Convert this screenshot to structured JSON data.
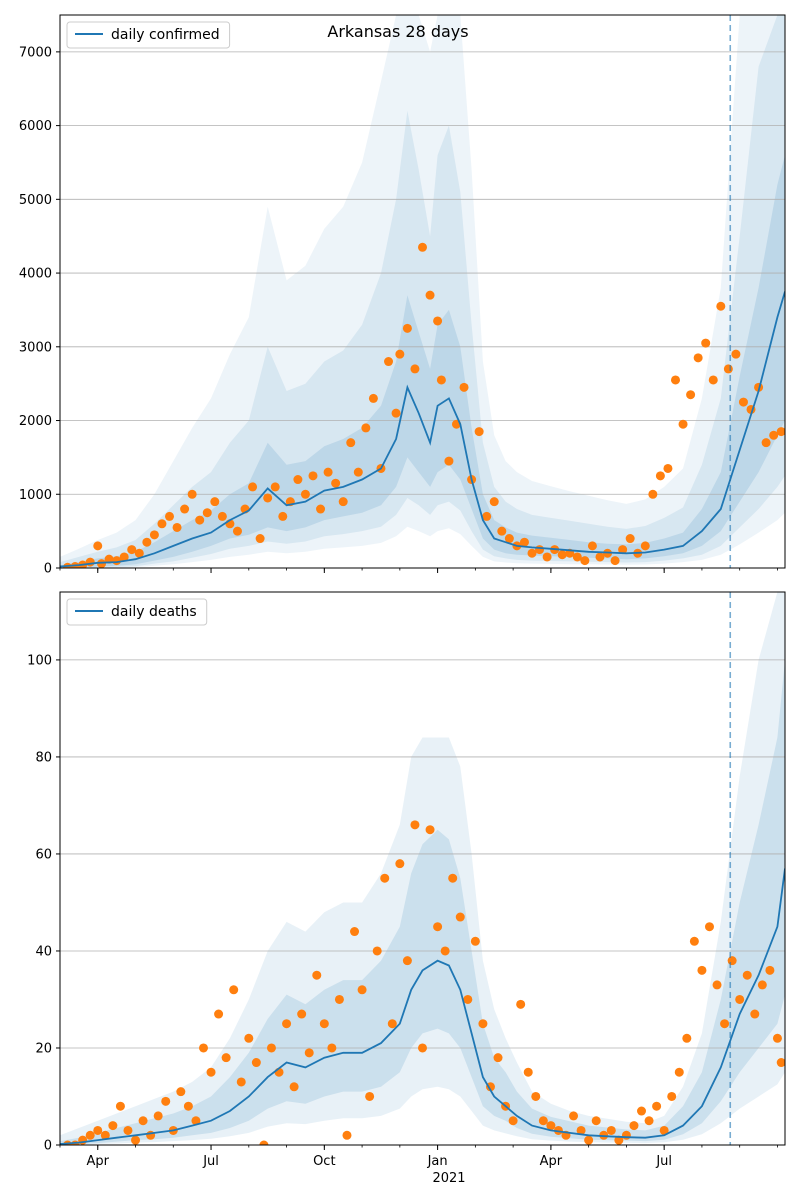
{
  "title": "Arkansas 28 days",
  "colors": {
    "line": "#1f77b4",
    "points": "#ff7f0e",
    "band": "#1f77b4",
    "grid": "#b0b0b0",
    "vline": "#1f77b4"
  },
  "x_axis": {
    "month_ticks": [
      {
        "label": "Apr",
        "x": 1
      },
      {
        "label": "Jul",
        "x": 4
      },
      {
        "label": "Oct",
        "x": 7
      },
      {
        "label": "Jan",
        "x": 10
      },
      {
        "label": "Apr",
        "x": 13
      },
      {
        "label": "Jul",
        "x": 16
      }
    ],
    "year_label": "2021"
  },
  "chart_data": [
    {
      "type": "line",
      "legend": "daily confirmed",
      "legend_position": "top-left",
      "xlim": [
        0,
        19.2
      ],
      "ylim": [
        0,
        7500
      ],
      "yticks": [
        0,
        1000,
        2000,
        3000,
        4000,
        5000,
        6000,
        7000
      ],
      "grid": true,
      "forecast_start_x": 17.75,
      "line": {
        "x": [
          0,
          0.5,
          1,
          1.5,
          2,
          2.5,
          3,
          3.5,
          4,
          4.5,
          5,
          5.5,
          6,
          6.5,
          7,
          7.5,
          8,
          8.5,
          8.9,
          9.2,
          9.5,
          9.8,
          10,
          10.3,
          10.6,
          10.9,
          11.2,
          11.5,
          11.8,
          12.1,
          12.5,
          13,
          13.5,
          14,
          14.5,
          15,
          15.5,
          16,
          16.5,
          17,
          17.5,
          18,
          18.5,
          19,
          19.2
        ],
        "y": [
          20,
          40,
          70,
          80,
          120,
          200,
          300,
          400,
          480,
          650,
          780,
          1080,
          850,
          900,
          1050,
          1100,
          1200,
          1350,
          1750,
          2450,
          2100,
          1700,
          2200,
          2300,
          1950,
          1200,
          650,
          400,
          350,
          300,
          280,
          260,
          240,
          220,
          210,
          200,
          210,
          250,
          300,
          500,
          800,
          1600,
          2400,
          3400,
          3750
        ]
      },
      "bands": [
        {
          "lower": [
            5,
            10,
            20,
            30,
            50,
            100,
            150,
            220,
            300,
            400,
            450,
            550,
            500,
            550,
            650,
            700,
            750,
            850,
            1100,
            1500,
            1300,
            1100,
            1300,
            1400,
            1200,
            800,
            400,
            250,
            200,
            180,
            170,
            160,
            150,
            140,
            130,
            120,
            130,
            160,
            200,
            300,
            500,
            900,
            1300,
            1800,
            2000
          ],
          "upper": [
            40,
            80,
            130,
            160,
            220,
            350,
            500,
            650,
            780,
            1000,
            1150,
            1700,
            1400,
            1450,
            1650,
            1750,
            1900,
            2200,
            2800,
            3700,
            3200,
            2700,
            3300,
            3500,
            3000,
            1900,
            1000,
            650,
            550,
            480,
            440,
            410,
            380,
            350,
            330,
            320,
            340,
            400,
            480,
            800,
            1300,
            2600,
            3800,
            5200,
            5600
          ]
        },
        {
          "lower": [
            2,
            5,
            10,
            15,
            25,
            60,
            90,
            140,
            190,
            260,
            300,
            360,
            330,
            360,
            430,
            460,
            500,
            560,
            720,
            950,
            850,
            720,
            850,
            900,
            780,
            500,
            250,
            160,
            130,
            110,
            100,
            95,
            90,
            85,
            80,
            75,
            80,
            100,
            130,
            180,
            300,
            550,
            800,
            1100,
            1250
          ],
          "upper": [
            80,
            150,
            220,
            280,
            380,
            600,
            850,
            1100,
            1300,
            1700,
            2000,
            3000,
            2400,
            2500,
            2800,
            2950,
            3300,
            4000,
            5000,
            6200,
            5400,
            4500,
            5600,
            6000,
            5100,
            3300,
            1700,
            1100,
            900,
            800,
            720,
            680,
            640,
            600,
            560,
            530,
            570,
            680,
            820,
            1400,
            2300,
            4500,
            6800,
            7500,
            7500
          ]
        },
        {
          "lower": [
            0,
            2,
            5,
            8,
            12,
            30,
            50,
            80,
            110,
            150,
            180,
            220,
            200,
            220,
            260,
            280,
            300,
            340,
            430,
            560,
            500,
            430,
            500,
            540,
            460,
            300,
            150,
            90,
            75,
            65,
            60,
            55,
            52,
            50,
            48,
            45,
            48,
            60,
            80,
            110,
            180,
            320,
            480,
            650,
            750
          ],
          "upper": [
            150,
            260,
            380,
            480,
            650,
            1000,
            1450,
            1900,
            2300,
            2900,
            3400,
            4900,
            3900,
            4100,
            4600,
            4900,
            5500,
            6600,
            7500,
            7500,
            7500,
            7000,
            7500,
            7500,
            7500,
            5400,
            2800,
            1800,
            1450,
            1300,
            1180,
            1110,
            1040,
            980,
            920,
            870,
            930,
            1100,
            1350,
            2300,
            3800,
            7500,
            7500,
            7500,
            7500
          ]
        }
      ],
      "points": {
        "x": [
          0.2,
          0.4,
          0.6,
          0.8,
          1.0,
          1.1,
          1.3,
          1.5,
          1.7,
          1.9,
          2.1,
          2.3,
          2.5,
          2.7,
          2.9,
          3.1,
          3.3,
          3.5,
          3.7,
          3.9,
          4.1,
          4.3,
          4.5,
          4.7,
          4.9,
          5.1,
          5.3,
          5.5,
          5.7,
          5.9,
          6.1,
          6.3,
          6.5,
          6.7,
          6.9,
          7.1,
          7.3,
          7.5,
          7.7,
          7.9,
          8.1,
          8.3,
          8.5,
          8.7,
          8.9,
          9.0,
          9.2,
          9.4,
          9.6,
          9.8,
          10.0,
          10.1,
          10.3,
          10.5,
          10.7,
          10.9,
          11.1,
          11.3,
          11.5,
          11.7,
          11.9,
          12.1,
          12.3,
          12.5,
          12.7,
          12.9,
          13.1,
          13.3,
          13.5,
          13.7,
          13.9,
          14.1,
          14.3,
          14.5,
          14.7,
          14.9,
          15.1,
          15.3,
          15.5,
          15.7,
          15.9,
          16.1,
          16.3,
          16.5,
          16.7,
          16.9,
          17.1,
          17.3,
          17.5,
          17.7,
          17.9,
          18.1,
          18.3,
          18.5,
          18.7,
          18.9,
          19.1
        ],
        "y": [
          10,
          20,
          40,
          80,
          300,
          60,
          120,
          100,
          150,
          250,
          200,
          350,
          450,
          600,
          700,
          550,
          800,
          1000,
          650,
          750,
          900,
          700,
          600,
          500,
          800,
          1100,
          400,
          950,
          1100,
          700,
          900,
          1200,
          1000,
          1250,
          800,
          1300,
          1150,
          900,
          1700,
          1300,
          1900,
          2300,
          1350,
          2800,
          2100,
          2900,
          3250,
          2700,
          4350,
          3700,
          3350,
          2550,
          1450,
          1950,
          2450,
          1200,
          1850,
          700,
          900,
          500,
          400,
          300,
          350,
          200,
          250,
          150,
          250,
          180,
          200,
          150,
          100,
          300,
          150,
          200,
          100,
          250,
          400,
          200,
          300,
          1000,
          1250,
          1350,
          2550,
          1950,
          2350,
          2850,
          3050,
          2550,
          3550,
          2700,
          2900,
          2250,
          2150,
          2450,
          1700,
          1800,
          1850
        ]
      }
    },
    {
      "type": "line",
      "legend": "daily deaths",
      "legend_position": "top-left",
      "xlim": [
        0,
        19.2
      ],
      "ylim": [
        0,
        114
      ],
      "yticks": [
        0,
        20,
        40,
        60,
        80,
        100
      ],
      "grid": true,
      "forecast_start_x": 17.75,
      "line": {
        "x": [
          0,
          0.5,
          1,
          1.5,
          2,
          2.5,
          3,
          3.5,
          4,
          4.5,
          5,
          5.5,
          6,
          6.5,
          7,
          7.5,
          8,
          8.5,
          9,
          9.3,
          9.6,
          10,
          10.3,
          10.6,
          10.9,
          11.2,
          11.5,
          11.8,
          12.1,
          12.5,
          13,
          13.5,
          14,
          14.5,
          15,
          15.5,
          16,
          16.5,
          17,
          17.5,
          18,
          18.5,
          19,
          19.2
        ],
        "y": [
          0.2,
          0.5,
          1,
          1.5,
          2,
          2.5,
          3,
          4,
          5,
          7,
          10,
          14,
          17,
          16,
          18,
          19,
          19,
          21,
          25,
          32,
          36,
          38,
          37,
          32,
          23,
          14,
          10,
          8,
          6,
          4,
          3,
          2.5,
          2,
          1.8,
          1.6,
          1.5,
          2,
          4,
          8,
          16,
          27,
          35,
          45,
          57
        ]
      },
      "bands": [
        {
          "lower": [
            0,
            0.2,
            0.4,
            0.7,
            1,
            1.2,
            1.5,
            2,
            2.5,
            3.5,
            5,
            7.5,
            9,
            8.5,
            10,
            11,
            11,
            12,
            15,
            20,
            23,
            24,
            23,
            20,
            14,
            8,
            6,
            5,
            3.5,
            2.3,
            1.7,
            1.4,
            1.1,
            1,
            0.9,
            0.8,
            1.1,
            2.2,
            4.5,
            9,
            15,
            20,
            25,
            31
          ],
          "upper": [
            0.8,
            1.5,
            2.5,
            3.5,
            4.5,
            5.5,
            6.5,
            8,
            10,
            14,
            19,
            26,
            31,
            29,
            32,
            34,
            34,
            38,
            45,
            56,
            62,
            65,
            63,
            55,
            40,
            25,
            18,
            15,
            11,
            7.5,
            5.8,
            4.9,
            4,
            3.6,
            3.2,
            3,
            4,
            8,
            15,
            30,
            50,
            66,
            84,
            100
          ]
        },
        {
          "lower": [
            0,
            0.1,
            0.2,
            0.3,
            0.5,
            0.6,
            0.8,
            1,
            1.3,
            1.8,
            2.5,
            3.8,
            4.5,
            4.3,
            5,
            5.5,
            5.5,
            6,
            7.5,
            10,
            11.5,
            12,
            11.5,
            10,
            7,
            4,
            3,
            2.4,
            1.8,
            1.2,
            0.9,
            0.7,
            0.6,
            0.5,
            0.45,
            0.4,
            0.55,
            1.1,
            2.2,
            4.5,
            7.5,
            10,
            12.5,
            15
          ],
          "upper": [
            2,
            3.5,
            5,
            6.5,
            8,
            9.5,
            11,
            13,
            16,
            22,
            30,
            40,
            46,
            44,
            48,
            50,
            50,
            56,
            66,
            80,
            84,
            84,
            84,
            78,
            60,
            38,
            28,
            22,
            17,
            11,
            8.5,
            7,
            6,
            5.4,
            4.8,
            4.5,
            6,
            12,
            23,
            46,
            76,
            100,
            114,
            114
          ]
        }
      ],
      "points": {
        "x": [
          0.2,
          0.4,
          0.6,
          0.8,
          1.0,
          1.2,
          1.4,
          1.6,
          1.8,
          2.0,
          2.2,
          2.4,
          2.6,
          2.8,
          3.0,
          3.2,
          3.4,
          3.6,
          3.8,
          4.0,
          4.2,
          4.4,
          4.6,
          4.8,
          5.0,
          5.2,
          5.4,
          5.6,
          5.8,
          6.0,
          6.2,
          6.4,
          6.6,
          6.8,
          7.0,
          7.2,
          7.4,
          7.6,
          7.8,
          8.0,
          8.2,
          8.4,
          8.6,
          8.8,
          9.0,
          9.2,
          9.4,
          9.6,
          9.8,
          10.0,
          10.2,
          10.4,
          10.6,
          10.8,
          11.0,
          11.2,
          11.4,
          11.6,
          11.8,
          12.0,
          12.2,
          12.4,
          12.6,
          12.8,
          13.0,
          13.2,
          13.4,
          13.6,
          13.8,
          14.0,
          14.2,
          14.4,
          14.6,
          14.8,
          15.0,
          15.2,
          15.4,
          15.6,
          15.8,
          16.0,
          16.2,
          16.4,
          16.6,
          16.8,
          17.0,
          17.2,
          17.4,
          17.6,
          17.8,
          18.0,
          18.2,
          18.4,
          18.6,
          18.8,
          19.0,
          19.1
        ],
        "y": [
          0,
          0,
          1,
          2,
          3,
          2,
          4,
          8,
          3,
          1,
          5,
          2,
          6,
          9,
          3,
          11,
          8,
          5,
          20,
          15,
          27,
          18,
          32,
          13,
          22,
          17,
          0,
          20,
          15,
          25,
          12,
          27,
          19,
          35,
          25,
          20,
          30,
          2,
          44,
          32,
          10,
          40,
          55,
          25,
          58,
          38,
          66,
          20,
          65,
          45,
          40,
          55,
          47,
          30,
          42,
          25,
          12,
          18,
          8,
          5,
          29,
          15,
          10,
          5,
          4,
          3,
          2,
          6,
          3,
          1,
          5,
          2,
          3,
          1,
          2,
          4,
          7,
          5,
          8,
          3,
          10,
          15,
          22,
          42,
          36,
          45,
          33,
          25,
          38,
          30,
          35,
          27,
          33,
          36,
          22,
          17
        ]
      }
    }
  ]
}
